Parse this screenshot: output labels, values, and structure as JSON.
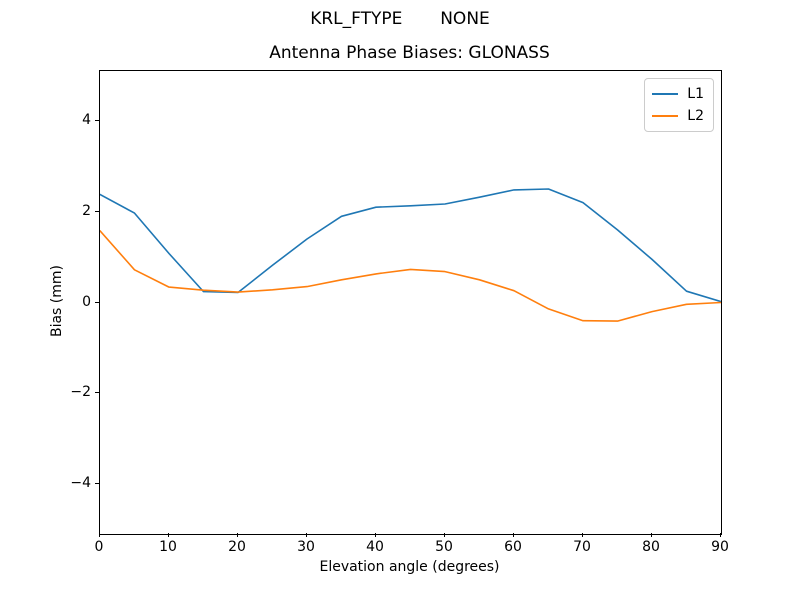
{
  "chart_data": {
    "type": "line",
    "suptitle": "KRL_FTYPE       NONE",
    "title": "Antenna Phase Biases: GLONASS",
    "xlabel": "Elevation angle (degrees)",
    "ylabel": "Bias (mm)",
    "xlim": [
      0,
      90
    ],
    "ylim": [
      -5.1,
      5.1
    ],
    "xticks": [
      0,
      10,
      20,
      30,
      40,
      50,
      60,
      70,
      80,
      90
    ],
    "yticks": [
      -4,
      -2,
      0,
      2,
      4
    ],
    "yticklabels": [
      "−4",
      "−2",
      "0",
      "2",
      "4"
    ],
    "grid": false,
    "legend_position": "upper right",
    "line_width": 1.6,
    "background_color": "#ffffff",
    "x": [
      0,
      5,
      10,
      15,
      20,
      25,
      30,
      35,
      40,
      45,
      50,
      55,
      60,
      65,
      70,
      75,
      80,
      85,
      90
    ],
    "series": [
      {
        "name": "L1",
        "color": "#1f77b4",
        "values": [
          2.38,
          1.97,
          1.08,
          0.24,
          0.22,
          0.82,
          1.4,
          1.9,
          2.1,
          2.13,
          2.17,
          2.32,
          2.48,
          2.5,
          2.2,
          1.6,
          0.95,
          0.25,
          0.02
        ]
      },
      {
        "name": "L2",
        "color": "#ff7f0e",
        "values": [
          1.58,
          0.72,
          0.34,
          0.27,
          0.23,
          0.28,
          0.35,
          0.5,
          0.63,
          0.73,
          0.68,
          0.5,
          0.26,
          -0.14,
          -0.4,
          -0.41,
          -0.2,
          -0.04,
          0.0
        ]
      }
    ]
  }
}
